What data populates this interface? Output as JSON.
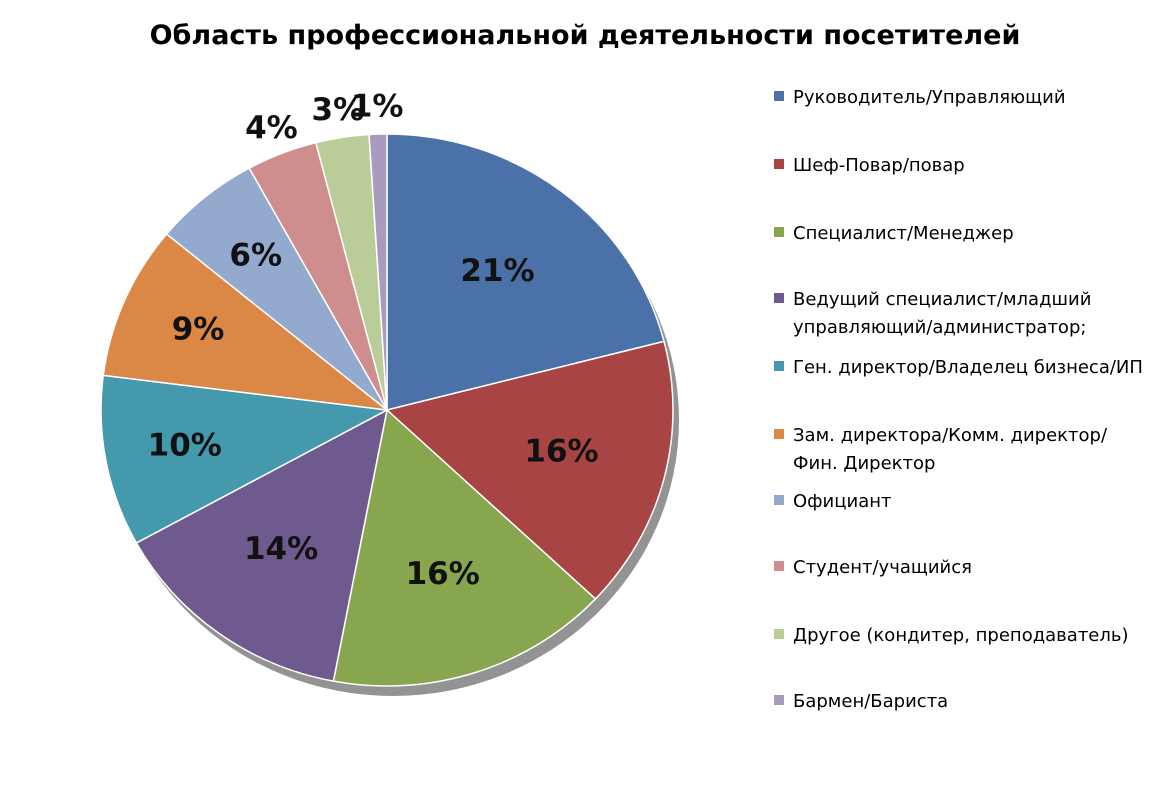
{
  "chart_data": {
    "type": "pie",
    "title": "Область профессиональной деятельности  посетителей",
    "legend_position": "right",
    "slices": [
      {
        "label": "Руководитель/Управляющий",
        "value": 21,
        "display": "21%",
        "color": "#4A72A8"
      },
      {
        "label": "Шеф-Повар/повар",
        "value": 16,
        "display": "16%",
        "color": "#A84443"
      },
      {
        "label": "Специалист/Менеджер",
        "value": 16,
        "display": "16%",
        "color": "#87A64E"
      },
      {
        "label": "Ведущий специалист/младший управляющий/администратор;",
        "value": 14,
        "display": "14%",
        "color": "#6E5A8E"
      },
      {
        "label": "Ген. директор/Владелец бизнеса/ИП",
        "value": 10,
        "display": "10%",
        "color": "#4599AD"
      },
      {
        "label": "Зам. директора/Комм. директор/Фин. Директор",
        "value": 9,
        "display": "9%",
        "color": "#DB8745"
      },
      {
        "label": "Официант",
        "value": 6,
        "display": "6%",
        "color": "#93A9CE"
      },
      {
        "label": "Студент/учащийся",
        "value": 4,
        "display": "4%",
        "color": "#CF8E8E"
      },
      {
        "label": "Другое (кондитер, преподаватель)",
        "value": 3,
        "display": "3%",
        "color": "#BACD98"
      },
      {
        "label": "Бармен/Бариста",
        "value": 1,
        "display": "1%",
        "color": "#A99BBE"
      }
    ]
  }
}
